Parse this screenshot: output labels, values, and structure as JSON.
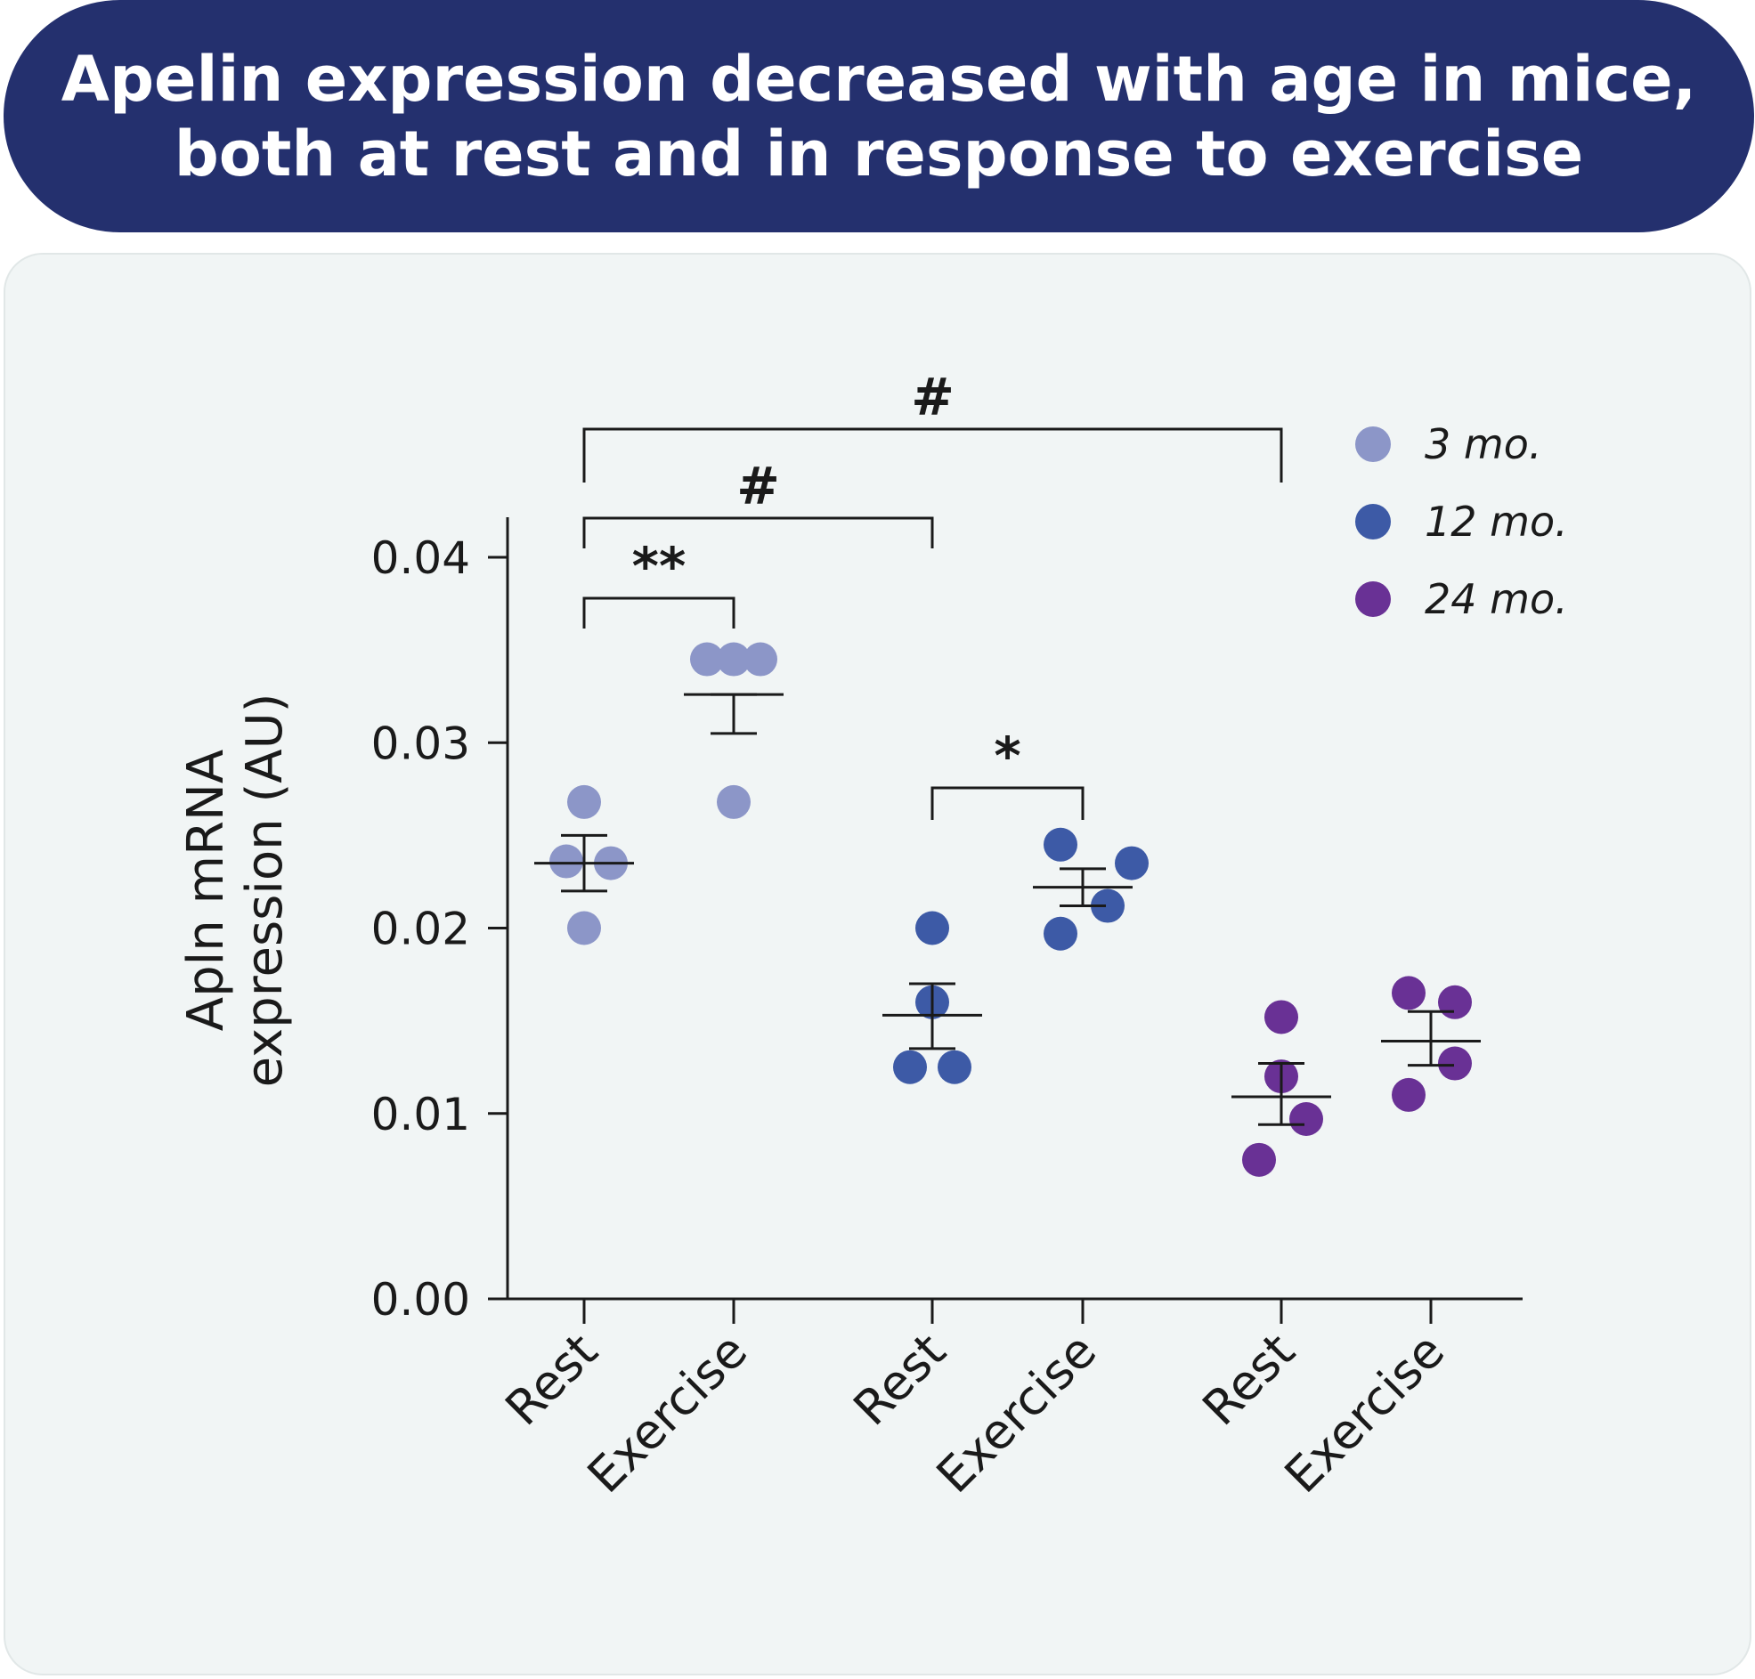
{
  "title": {
    "line1": "Apelin expression decreased with age in mice,",
    "line2": "both at rest and in response to exercise"
  },
  "colors": {
    "banner": "#24306e",
    "panel": "#f1f5f5",
    "3 mo.": "#8c96c8",
    "12 mo.": "#3d5aa6",
    "24 mo.": "#693195"
  },
  "chart_data": {
    "type": "scatter",
    "ylabel": [
      "Apln mRNA",
      "expression (AU)"
    ],
    "ylim": [
      0,
      0.04
    ],
    "yticks": [
      {
        "value": 0.0,
        "label": "0.00"
      },
      {
        "value": 0.01,
        "label": "0.01"
      },
      {
        "value": 0.02,
        "label": "0.02"
      },
      {
        "value": 0.03,
        "label": "0.03"
      },
      {
        "value": 0.04,
        "label": "0.04"
      }
    ],
    "categories": [
      "Rest",
      "Exercise",
      "Rest",
      "Exercise",
      "Rest",
      "Exercise"
    ],
    "legend": [
      "3 mo.",
      "12 mo.",
      "24 mo."
    ],
    "legend_position": "top-right",
    "groups": [
      {
        "series": "3 mo.",
        "category": "Rest",
        "points": [
          0.0268,
          0.0235,
          0.0236,
          0.02
        ],
        "mean": 0.0235,
        "sem": [
          0.022,
          0.025
        ]
      },
      {
        "series": "3 mo.",
        "category": "Exercise",
        "points": [
          0.0345,
          0.0345,
          0.0345,
          0.0268
        ],
        "mean": 0.0326,
        "sem": [
          0.0305,
          0.0326
        ]
      },
      {
        "series": "12 mo.",
        "category": "Rest",
        "points": [
          0.02,
          0.016,
          0.0125,
          0.0125
        ],
        "mean": 0.0153,
        "sem": [
          0.0135,
          0.017
        ]
      },
      {
        "series": "12 mo.",
        "category": "Exercise",
        "points": [
          0.0245,
          0.0235,
          0.0212,
          0.0197
        ],
        "mean": 0.0222,
        "sem": [
          0.0212,
          0.0232
        ]
      },
      {
        "series": "24 mo.",
        "category": "Rest",
        "points": [
          0.0152,
          0.012,
          0.0097,
          0.0075
        ],
        "mean": 0.0109,
        "sem": [
          0.0094,
          0.0127
        ]
      },
      {
        "series": "24 mo.",
        "category": "Exercise",
        "points": [
          0.0165,
          0.016,
          0.0127,
          0.011
        ],
        "mean": 0.0139,
        "sem": [
          0.0126,
          0.0155
        ]
      }
    ],
    "annotations": [
      {
        "label": "**",
        "from": 0,
        "to": 1
      },
      {
        "label": "*",
        "from": 2,
        "to": 3
      },
      {
        "label": "#",
        "from": 0,
        "to": 2
      },
      {
        "label": "#",
        "from": 0,
        "to": 4
      }
    ]
  }
}
